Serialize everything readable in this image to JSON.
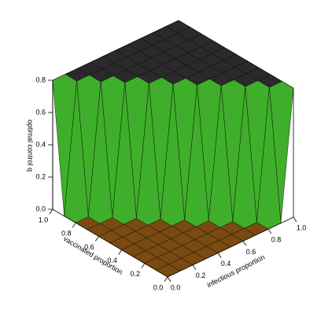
{
  "chart_data": {
    "type": "surface3d",
    "xlabel": "infectious proportion",
    "ylabel": "vaccinated proportion",
    "zlabel": "optimal control q",
    "x": [
      0,
      0.1,
      0.2,
      0.3,
      0.4,
      0.5,
      0.6,
      0.7,
      0.8,
      0.9,
      1
    ],
    "y": [
      0,
      0.1,
      0.2,
      0.3,
      0.4,
      0.5,
      0.6,
      0.7,
      0.8,
      0.9,
      1
    ],
    "z": [
      [
        0,
        0,
        0,
        0,
        0,
        0,
        0,
        0,
        0,
        0,
        0.8
      ],
      [
        0,
        0,
        0,
        0,
        0,
        0,
        0,
        0,
        0,
        0.8,
        0.8
      ],
      [
        0,
        0,
        0,
        0,
        0,
        0,
        0,
        0,
        0.8,
        0.8,
        0.8
      ],
      [
        0,
        0,
        0,
        0,
        0,
        0,
        0,
        0.8,
        0.8,
        0.8,
        0.8
      ],
      [
        0,
        0,
        0,
        0,
        0,
        0,
        0.8,
        0.8,
        0.8,
        0.8,
        0.8
      ],
      [
        0,
        0,
        0,
        0,
        0,
        0.8,
        0.8,
        0.8,
        0.8,
        0.8,
        0.8
      ],
      [
        0,
        0,
        0,
        0,
        0.8,
        0.8,
        0.8,
        0.8,
        0.8,
        0.8,
        0.8
      ],
      [
        0,
        0,
        0,
        0.8,
        0.8,
        0.8,
        0.8,
        0.8,
        0.8,
        0.8,
        0.8
      ],
      [
        0,
        0,
        0.8,
        0.8,
        0.8,
        0.8,
        0.8,
        0.8,
        0.8,
        0.8,
        0.8
      ],
      [
        0,
        0.8,
        0.8,
        0.8,
        0.8,
        0.8,
        0.8,
        0.8,
        0.8,
        0.8,
        0.8
      ],
      [
        0.8,
        0.8,
        0.8,
        0.8,
        0.8,
        0.8,
        0.8,
        0.8,
        0.8,
        0.8,
        0.8
      ]
    ],
    "xlim": [
      0,
      1
    ],
    "ylim": [
      0,
      1
    ],
    "zlim": [
      0,
      0.8
    ],
    "xticks": [
      {
        "value": 0,
        "label": "0.0"
      },
      0.2,
      0.4,
      0.6,
      0.8,
      {
        "value": 1,
        "label": "1.0"
      }
    ],
    "yticks": [
      {
        "value": 0,
        "label": "0.0"
      },
      0.2,
      0.4,
      0.6,
      0.8,
      {
        "value": 1,
        "label": "1.0"
      }
    ],
    "zticks": [
      {
        "value": 0,
        "label": "0.0"
      },
      0.2,
      0.4,
      0.6,
      0.8
    ],
    "colors": {
      "top": "#2a2a2a",
      "floor": "#7a4a12",
      "wall": "#3fae2a",
      "edge": "#000000"
    }
  }
}
